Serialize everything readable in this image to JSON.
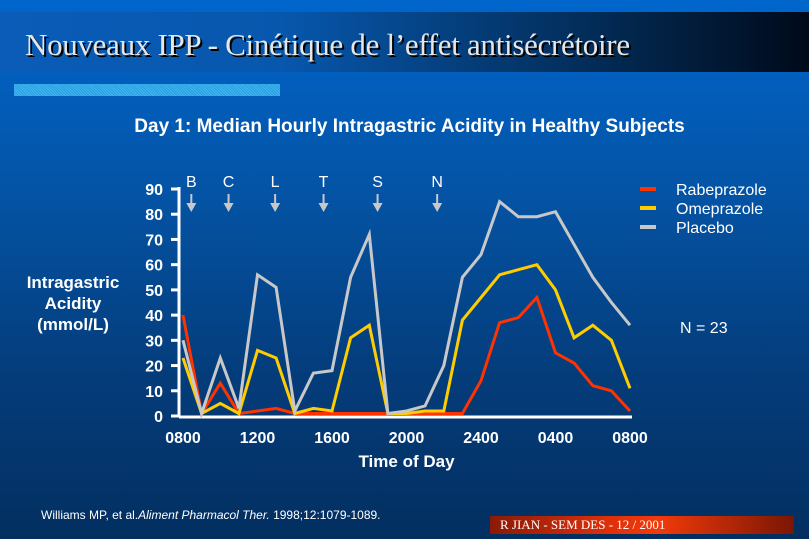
{
  "slide": {
    "title": "Nouveaux IPP - Cinétique de l’effet antisécrétoire",
    "citation_authors": "Williams MP, et al.",
    "citation_journal": "Aliment Pharmacol Ther.",
    "citation_ref": " 1998;12:1079-1089.",
    "footer": "R JIAN - SEM DES - 12 / 2001",
    "n_label": "N = 23"
  },
  "chart_data": {
    "type": "line",
    "title": "Day 1: Median Hourly Intragastric Acidity in Healthy Subjects",
    "xlabel": "Time of Day",
    "ylabel": [
      "Intragastric",
      "Acidity",
      "(mmol/L)"
    ],
    "ylim": [
      0,
      90
    ],
    "yticks": [
      "0",
      "10",
      "20",
      "30",
      "40",
      "50",
      "60",
      "70",
      "80",
      "90"
    ],
    "xticks": [
      "0800",
      "1200",
      "1600",
      "2000",
      "2400",
      "0400",
      "0800"
    ],
    "x_hours": [
      0,
      1,
      2,
      3,
      4,
      5,
      6,
      7,
      8,
      9,
      10,
      11,
      12,
      13,
      14,
      15,
      16,
      17,
      18,
      19,
      20,
      21,
      22,
      23,
      24
    ],
    "legend_position": "top-right",
    "grid": false,
    "meal_markers": [
      {
        "label": "B",
        "hour": 0.5
      },
      {
        "label": "C",
        "hour": 2.5
      },
      {
        "label": "L",
        "hour": 5
      },
      {
        "label": "T",
        "hour": 7.6
      },
      {
        "label": "S",
        "hour": 10.5
      },
      {
        "label": "N",
        "hour": 13.7
      }
    ],
    "series": [
      {
        "name": "Rabeprazole",
        "color": "#ff3300",
        "values": [
          40,
          1,
          13,
          1,
          2,
          3,
          1,
          1,
          1,
          1,
          1,
          1,
          1,
          1,
          1,
          1,
          14,
          37,
          39,
          47,
          25,
          21,
          12,
          10,
          2
        ]
      },
      {
        "name": "Omeprazole",
        "color": "#ffcc00",
        "values": [
          23,
          1,
          5,
          1,
          26,
          23,
          1,
          3,
          2,
          31,
          36,
          1,
          1,
          2,
          2,
          38,
          47,
          56,
          58,
          60,
          50,
          31,
          36,
          30,
          11
        ]
      },
      {
        "name": "Placebo",
        "color": "#c8c8c8",
        "values": [
          30,
          1,
          23,
          3,
          56,
          51,
          2,
          17,
          18,
          55,
          72,
          1,
          2,
          4,
          20,
          55,
          64,
          85,
          79,
          79,
          81,
          68,
          55,
          45,
          36
        ]
      }
    ]
  }
}
